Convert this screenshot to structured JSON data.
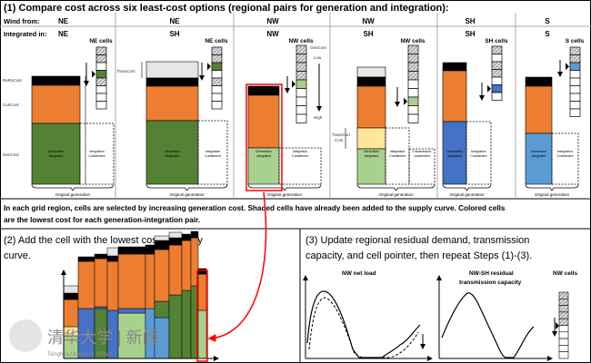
{
  "step1": {
    "title": "(1) Compare cost across six least-cost options (regional pairs for generation and integration):",
    "wind_from_label": "Wind from:",
    "integrated_in_label": "Integrated in:",
    "options": [
      {
        "from": "NE",
        "to": "NE",
        "cells_label": "NE cells"
      },
      {
        "from": "NE",
        "to": "SH",
        "cells_label": "NE cells"
      },
      {
        "from": "NW",
        "to": "NW",
        "cells_label": "NW cells"
      },
      {
        "from": "NW",
        "to": "SH",
        "cells_label": "NW cells"
      },
      {
        "from": "SH",
        "to": "SH",
        "cells_label": "SH cells"
      },
      {
        "from": "S",
        "to": "S",
        "cells_label": "S cells"
      }
    ],
    "cost_labels": {
      "rero": "ReRoCost",
      "curt": "CurtCost",
      "gen": "GenCost",
      "trans": "TransCost",
      "transcurt1": "TransCurt",
      "transcurt2": "Cost"
    },
    "gen_cost_axis": {
      "title": "GenCost",
      "low": "Low",
      "high": "High"
    },
    "bar_labels": {
      "gen1": "Generation",
      "gen2": "integrated",
      "int1": "Integration",
      "int2": "Curtailment",
      "tr1": "Transmission",
      "tr2": "curtailment"
    },
    "original_generation": "Original generation",
    "caption_line1": "In each grid region, cells are selected by increasing generation cost. Shaded cells have already been added to the supply curve. Colored cells",
    "caption_line2": "are the lowest cost for each generation-integration pair."
  },
  "step2": {
    "title_line1": "(2) Add the cell with the lowest cost to supply",
    "title_line2": "curve."
  },
  "step3": {
    "title_line1": "(3) Update regional residual demand, transmission",
    "title_line2": "capacity, and cell pointer, then repeat Steps (1)-(3).",
    "chart1_title": "NW net load",
    "chart2_title_line1": "NW-SH residual",
    "chart2_title_line2": "transmission capacity",
    "cells_label": "NW cells"
  },
  "watermark": {
    "text": "清华大学 | 新闻",
    "sub": "Tsinghua University   NEWS"
  },
  "colors": {
    "black": "#000000",
    "orange": "#ED7D31",
    "dark_green": "#548235",
    "light_green": "#A9D18E",
    "light_gray": "#E7E6E6",
    "yellow": "#FFE699",
    "blue": "#4472C4",
    "light_blue": "#5B9BD5",
    "red": "#FF0000"
  }
}
